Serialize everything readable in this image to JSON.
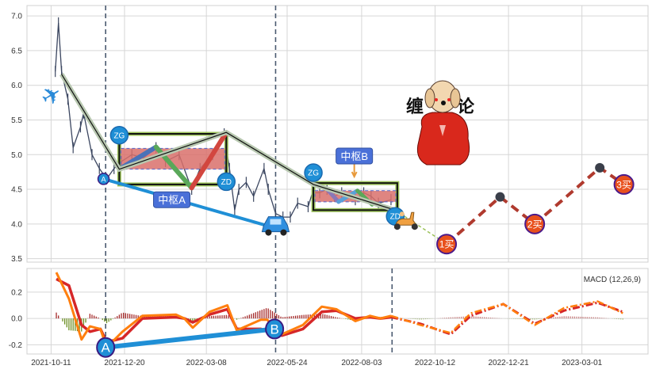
{
  "chart_data": [
    {
      "type": "line",
      "panel": "price",
      "xlim": [
        "2021-09-18",
        "2023-05-03"
      ],
      "ylim": [
        3.45,
        7.15
      ],
      "y_ticks": [
        "3.5",
        "4.0",
        "4.5",
        "5.0",
        "5.5",
        "6.0",
        "6.5",
        "7.0"
      ],
      "x_ticks": [
        "2021-10-11",
        "2021-12-20",
        "2022-03-08",
        "2022-05-24",
        "2022-08-03",
        "2022-10-12",
        "2022-12-21",
        "2023-03-01"
      ],
      "grid": true,
      "vlines": [
        "2021-12-02",
        "2022-05-13"
      ],
      "price": [
        [
          "2021-10-15",
          6.2
        ],
        [
          "2021-10-18",
          6.9
        ],
        [
          "2021-10-21",
          6.2
        ],
        [
          "2021-10-27",
          5.8
        ],
        [
          "2021-11-01",
          5.1
        ],
        [
          "2021-11-08",
          5.4
        ],
        [
          "2021-11-11",
          5.6
        ],
        [
          "2021-11-19",
          5.0
        ],
        [
          "2021-11-26",
          4.8
        ],
        [
          "2021-12-03",
          4.65
        ],
        [
          "2021-12-10",
          4.8
        ],
        [
          "2021-12-17",
          4.9
        ],
        [
          "2021-12-27",
          5.0
        ],
        [
          "2022-01-07",
          4.95
        ],
        [
          "2022-01-19",
          5.1
        ],
        [
          "2022-01-28",
          4.9
        ],
        [
          "2022-02-10",
          5.0
        ],
        [
          "2022-02-22",
          4.5
        ],
        [
          "2022-03-02",
          4.8
        ],
        [
          "2022-03-14",
          5.0
        ],
        [
          "2022-03-25",
          5.3
        ],
        [
          "2022-03-30",
          4.8
        ],
        [
          "2022-04-04",
          4.2
        ],
        [
          "2022-04-08",
          4.5
        ],
        [
          "2022-04-15",
          4.6
        ],
        [
          "2022-04-22",
          4.4
        ],
        [
          "2022-05-02",
          4.8
        ],
        [
          "2022-05-06",
          4.5
        ],
        [
          "2022-05-13",
          4.15
        ],
        [
          "2022-05-20",
          4.1
        ],
        [
          "2022-05-27",
          4.1
        ],
        [
          "2022-06-03",
          4.3
        ],
        [
          "2022-06-13",
          4.25
        ],
        [
          "2022-06-17",
          4.45
        ],
        [
          "2022-06-24",
          4.45
        ],
        [
          "2022-07-01",
          4.5
        ],
        [
          "2022-07-08",
          4.4
        ],
        [
          "2022-07-15",
          4.45
        ],
        [
          "2022-07-28",
          4.35
        ],
        [
          "2022-08-05",
          4.45
        ],
        [
          "2022-08-12",
          4.4
        ],
        [
          "2022-08-19",
          4.3
        ],
        [
          "2022-08-31",
          4.35
        ]
      ],
      "trend_line": [
        [
          "2021-10-21",
          6.16
        ],
        [
          "2021-12-15",
          4.79
        ],
        [
          "2022-03-27",
          5.32
        ],
        [
          "2022-06-18",
          4.57
        ],
        [
          "2022-09-04",
          4.2
        ]
      ],
      "trend_line_projection": [
        [
          "2022-09-04",
          4.2
        ],
        [
          "2022-10-23",
          3.71
        ]
      ],
      "zhongshu": [
        {
          "label": "中枢A",
          "start": "2021-12-15",
          "end": "2022-03-27",
          "zg": 5.3,
          "zd": 4.57,
          "inner_high": 5.09,
          "inner_low": 4.79,
          "label_date": "2022-02-03",
          "label_price": 4.35,
          "strokes": [
            {
              "from": [
                "2021-12-15",
                4.79
              ],
              "to": [
                "2022-01-19",
                5.11
              ],
              "color": "#4a72b8"
            },
            {
              "from": [
                "2022-01-19",
                5.11
              ],
              "to": [
                "2022-02-22",
                4.52
              ],
              "color": "#5aa85a"
            },
            {
              "from": [
                "2022-02-22",
                4.52
              ],
              "to": [
                "2022-03-27",
                5.32
              ],
              "color": "#d2463f"
            }
          ]
        },
        {
          "label": "中枢B",
          "start": "2022-06-18",
          "end": "2022-09-06",
          "zg": 4.59,
          "zd": 4.2,
          "inner_high": 4.48,
          "inner_low": 4.32,
          "label_date": "2022-07-27",
          "label_price": 4.98,
          "strokes": [
            {
              "from": [
                "2022-06-18",
                4.57
              ],
              "to": [
                "2022-07-01",
                4.5
              ],
              "color": "#c9b47a"
            },
            {
              "from": [
                "2022-07-01",
                4.5
              ],
              "to": [
                "2022-07-12",
                4.32
              ],
              "color": "#8a78b8"
            },
            {
              "from": [
                "2022-07-12",
                4.32
              ],
              "to": [
                "2022-07-30",
                4.48
              ],
              "color": "#5aa0d8"
            },
            {
              "from": [
                "2022-07-30",
                4.48
              ],
              "to": [
                "2022-08-13",
                4.28
              ],
              "color": "#5aa85a"
            }
          ]
        }
      ],
      "markers": [
        {
          "label": "A",
          "date": "2021-11-30",
          "price": 4.65
        },
        {
          "label": "ZG",
          "date": "2021-12-15",
          "price": 5.28
        },
        {
          "label": "ZD",
          "date": "2022-03-27",
          "price": 4.61
        },
        {
          "label": "ZG",
          "date": "2022-06-18",
          "price": 4.74
        },
        {
          "label": "ZD",
          "date": "2022-09-04",
          "price": 4.11
        }
      ],
      "divergence_line": [
        [
          "2021-11-30",
          4.65
        ],
        [
          "2022-05-13",
          3.94
        ]
      ],
      "forecast_path": [
        [
          "2022-09-04",
          4.2
        ],
        [
          "2022-10-23",
          3.71
        ],
        [
          "2022-12-13",
          4.39
        ],
        [
          "2023-01-15",
          4.0
        ],
        [
          "2023-03-18",
          4.81
        ],
        [
          "2023-04-10",
          4.57
        ]
      ],
      "buy_points": [
        {
          "label": "1买",
          "date": "2022-10-23",
          "price": 3.71
        },
        {
          "label": "2买",
          "date": "2023-01-15",
          "price": 4.0
        },
        {
          "label": "3买",
          "date": "2023-04-10",
          "price": 4.57
        }
      ],
      "sell_dots": [
        [
          "2022-12-13",
          4.39
        ],
        [
          "2023-03-18",
          4.81
        ]
      ],
      "logo_text": [
        "缠",
        "论"
      ],
      "colors": {
        "candles": "#3b4660",
        "divergence": "#1f8fd6",
        "forecast": "#b03a2e",
        "zhongshu_fill": "#d9706b",
        "box_border": "#9cc25a",
        "marker": "#1f8fd6",
        "buy": "#e8501c",
        "label_box": "#4a70d8"
      }
    },
    {
      "type": "line",
      "panel": "macd",
      "title": "MACD (12,26,9)",
      "ylim": [
        -0.27,
        0.38
      ],
      "y_ticks": [
        "-0.2",
        "0.0",
        "0.2"
      ],
      "grid": true,
      "vlines": [
        "2021-12-02",
        "2022-05-13",
        "2022-09-01"
      ],
      "dates": [
        "2021-10-16",
        "2021-10-28",
        "2021-11-09",
        "2021-11-17",
        "2021-11-27",
        "2021-12-03",
        "2021-12-18",
        "2022-01-06",
        "2022-02-07",
        "2022-02-15",
        "2022-02-23",
        "2022-03-11",
        "2022-03-28",
        "2022-04-06",
        "2022-04-29",
        "2022-05-05",
        "2022-05-19",
        "2022-06-08",
        "2022-06-26",
        "2022-07-10",
        "2022-07-28",
        "2022-08-11",
        "2022-08-21",
        "2022-08-31"
      ],
      "macd": [
        0.35,
        0.15,
        -0.16,
        -0.06,
        -0.08,
        -0.22,
        -0.1,
        0.02,
        0.03,
        0.0,
        -0.07,
        0.05,
        0.1,
        -0.09,
        -0.01,
        -0.01,
        -0.12,
        -0.05,
        0.09,
        0.07,
        -0.02,
        0.02,
        0.0,
        0.02
      ],
      "signal": [
        0.3,
        0.25,
        -0.05,
        -0.1,
        -0.08,
        -0.18,
        -0.15,
        0.0,
        0.01,
        0.0,
        -0.03,
        0.03,
        0.07,
        -0.08,
        -0.08,
        -0.1,
        -0.13,
        -0.08,
        0.05,
        0.06,
        0.0,
        0.01,
        0.0,
        0.01
      ],
      "forecast_dates": [
        "2022-08-31",
        "2022-09-28",
        "2022-10-27",
        "2022-11-15",
        "2022-12-16",
        "2023-01-15",
        "2023-02-12",
        "2023-03-16",
        "2023-04-09"
      ],
      "forecast_macd": [
        0.02,
        -0.05,
        -0.11,
        0.04,
        0.11,
        -0.05,
        0.08,
        0.13,
        0.04
      ],
      "forecast_signal": [
        0.01,
        -0.04,
        -0.12,
        0.02,
        0.11,
        -0.04,
        0.06,
        0.12,
        0.05
      ],
      "markers": [
        {
          "label": "A",
          "date": "2021-12-02",
          "value": -0.22
        },
        {
          "label": "B",
          "date": "2022-05-12",
          "value": -0.08
        }
      ],
      "colors": {
        "macd": "#ff7f0e",
        "signal": "#d62728",
        "hist_pos": "#a52a2a",
        "hist_neg": "#6b8e23"
      }
    }
  ]
}
